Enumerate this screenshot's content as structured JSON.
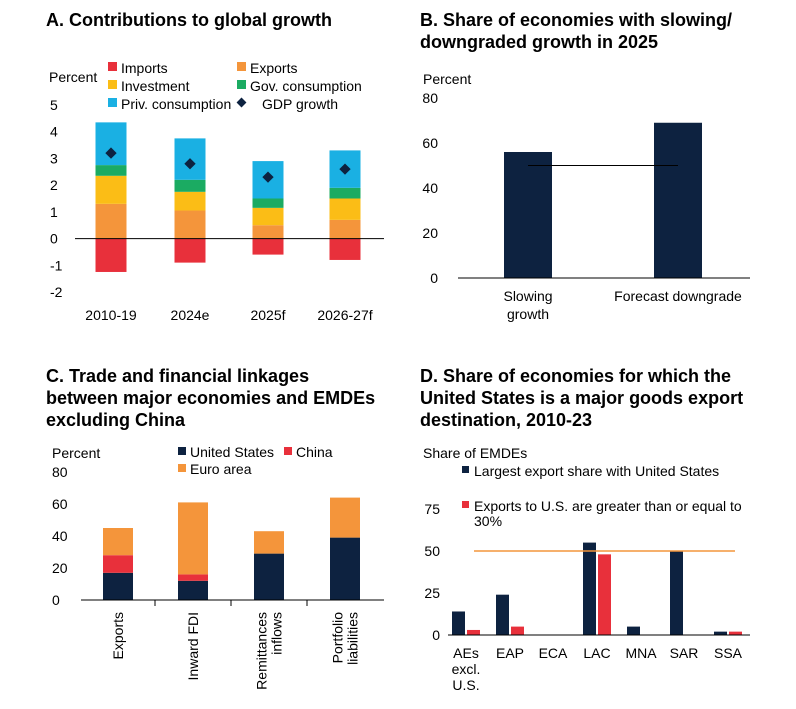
{
  "colors": {
    "imports": "#e8303b",
    "exports": "#f4953b",
    "investment": "#fbbd16",
    "gov_consumption": "#1bab62",
    "priv_consumption": "#1ab0e3",
    "gdp_growth": "#0d2240",
    "navy": "#0d2240",
    "red": "#e8303b",
    "orange": "#f4953b",
    "ref_line_orange": "#f4953b"
  },
  "panels": {
    "a": {
      "title": "A. Contributions to global growth"
    },
    "b": {
      "title_line1": "B. Share of economies with slowing/",
      "title_line2": "downgraded growth in 2025"
    },
    "c": {
      "title_line1": "C. Trade and financial linkages",
      "title_line2": "between major economies and EMDEs",
      "title_line3": "excluding China"
    },
    "d": {
      "title_line1": "D. Share of economies for which the",
      "title_line2": "United States is a major goods export",
      "title_line3": "destination, 2010-23"
    }
  },
  "chart_data": [
    {
      "id": "a",
      "type": "bar",
      "stacked": true,
      "ylabel": "Percent",
      "ylim": [
        -2,
        5
      ],
      "yticks": [
        "5",
        "4",
        "3",
        "2",
        "1",
        "0",
        "-1",
        "-2"
      ],
      "categories": [
        "2010-19",
        "2024e",
        "2025f",
        "2026-27f"
      ],
      "series": [
        {
          "name": "Imports",
          "values": [
            -1.25,
            -0.9,
            -0.6,
            -0.8
          ]
        },
        {
          "name": "Exports",
          "values": [
            1.3,
            1.05,
            0.5,
            0.7
          ]
        },
        {
          "name": "Investment",
          "values": [
            1.05,
            0.7,
            0.65,
            0.8
          ]
        },
        {
          "name": "Gov. consumption",
          "values": [
            0.4,
            0.45,
            0.35,
            0.4
          ]
        },
        {
          "name": "Priv. consumption",
          "values": [
            1.6,
            1.55,
            1.4,
            1.4
          ]
        }
      ],
      "markers": {
        "name": "GDP growth",
        "values": [
          3.2,
          2.8,
          2.3,
          2.6
        ]
      },
      "legend": [
        "Imports",
        "Exports",
        "Investment",
        "Gov. consumption",
        "Priv. consumption",
        "GDP growth"
      ]
    },
    {
      "id": "b",
      "type": "bar",
      "ylabel": "Percent",
      "ylim": [
        0,
        80
      ],
      "yticks": [
        "80",
        "60",
        "40",
        "20",
        "0"
      ],
      "categories": [
        "Slowing growth",
        "Forecast downgrade"
      ],
      "category_lines": [
        [
          "Slowing",
          "growth"
        ],
        [
          "Forecast downgrade"
        ]
      ],
      "values": [
        56,
        69
      ],
      "reference_line": 50
    },
    {
      "id": "c",
      "type": "bar",
      "stacked": true,
      "ylabel": "Percent",
      "ylim": [
        0,
        80
      ],
      "yticks": [
        "80",
        "60",
        "40",
        "20",
        "0"
      ],
      "categories": [
        "Exports",
        "Inward FDI",
        "Remittances inflows",
        "Portfolio liabilities"
      ],
      "category_lines": [
        [
          "Exports"
        ],
        [
          "Inward FDI"
        ],
        [
          "Remittances",
          "inflows"
        ],
        [
          "Portfolio",
          "liabilities"
        ]
      ],
      "series": [
        {
          "name": "United States",
          "values": [
            17,
            12,
            29,
            39
          ]
        },
        {
          "name": "China",
          "values": [
            11,
            4,
            0,
            0
          ]
        },
        {
          "name": "Euro area",
          "values": [
            17,
            45,
            14,
            25
          ]
        }
      ],
      "legend": [
        "United States",
        "China",
        "Euro area"
      ]
    },
    {
      "id": "d",
      "type": "bar",
      "ylabel": "Share of EMDEs",
      "ylim": [
        0,
        75
      ],
      "yticks": [
        "75",
        "50",
        "25",
        "0"
      ],
      "categories": [
        "AEs excl. U.S.",
        "EAP",
        "ECA",
        "LAC",
        "MNA",
        "SAR",
        "SSA"
      ],
      "category_lines": [
        [
          "AEs",
          "excl.",
          "U.S."
        ],
        [
          "EAP"
        ],
        [
          "ECA"
        ],
        [
          "LAC"
        ],
        [
          "MNA"
        ],
        [
          "SAR"
        ],
        [
          "SSA"
        ]
      ],
      "series": [
        {
          "name": "Largest export share with United States",
          "values": [
            14,
            24,
            0,
            55,
            5,
            50,
            2
          ]
        },
        {
          "name": "Exports to U.S. are greater than or equal to 30%",
          "values": [
            3,
            5,
            0,
            48,
            0,
            0,
            2
          ]
        }
      ],
      "legend_lines": [
        [
          "Largest export share with United States"
        ],
        [
          "Exports to U.S. are greater than or equal to",
          "30%"
        ]
      ],
      "reference_line": 50
    }
  ]
}
